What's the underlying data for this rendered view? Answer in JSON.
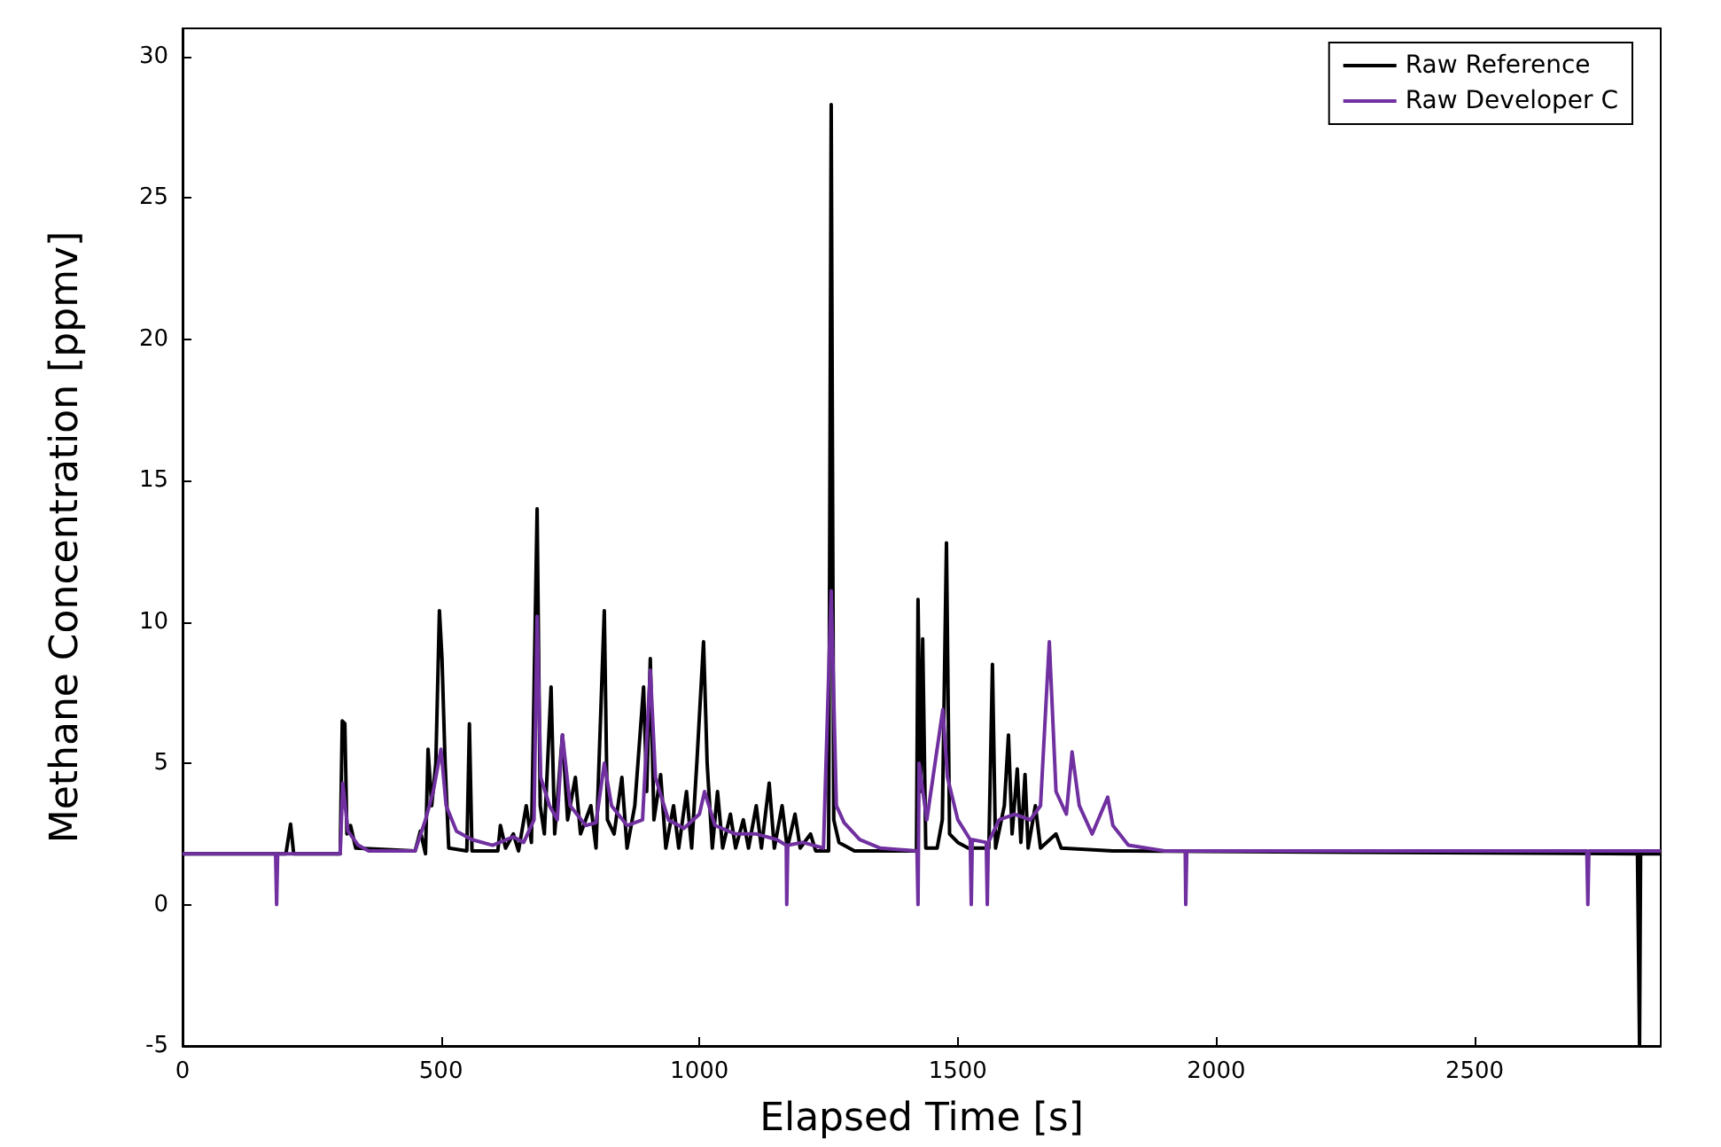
{
  "chart_data": {
    "type": "line",
    "xlabel": "Elapsed Time [s]",
    "ylabel": "Methane Concentration [ppmv]",
    "xlim": [
      0,
      2860
    ],
    "xticks": [
      0,
      500,
      1000,
      1500,
      2000,
      2500
    ],
    "ylim": [
      -5,
      31
    ],
    "yticks": [
      -5,
      0,
      5,
      10,
      15,
      20,
      25,
      30
    ],
    "legend": "top right",
    "marker": "none",
    "series": [
      {
        "name": "Raw Reference",
        "color": "#000000",
        "x": [
          0,
          200,
          209,
          215,
          305,
          309,
          314,
          318,
          325,
          335,
          450,
          460,
          470,
          475,
          482,
          490,
          497,
          502,
          508,
          515,
          550,
          555,
          560,
          610,
          615,
          625,
          640,
          650,
          665,
          675,
          686,
          692,
          700,
          713,
          720,
          735,
          745,
          760,
          770,
          790,
          800,
          816,
          822,
          835,
          850,
          860,
          875,
          892,
          898,
          905,
          912,
          925,
          935,
          950,
          960,
          975,
          985,
          995,
          1008,
          1015,
          1025,
          1035,
          1045,
          1060,
          1070,
          1085,
          1095,
          1110,
          1120,
          1135,
          1145,
          1160,
          1170,
          1185,
          1195,
          1215,
          1225,
          1250,
          1255,
          1260,
          1270,
          1300,
          1420,
          1423,
          1428,
          1432,
          1438,
          1460,
          1470,
          1478,
          1484,
          1500,
          1520,
          1560,
          1567,
          1573,
          1590,
          1598,
          1605,
          1615,
          1622,
          1630,
          1636,
          1650,
          1660,
          1690,
          1700,
          1800,
          2815,
          2819,
          2821,
          2860
        ],
        "values": [
          1.8,
          1.8,
          2.85,
          1.8,
          1.8,
          6.5,
          6.4,
          2.5,
          2.8,
          2.0,
          1.9,
          2.6,
          1.8,
          5.5,
          3.5,
          5.0,
          10.4,
          8.7,
          5,
          2.0,
          1.9,
          6.4,
          1.9,
          1.9,
          2.8,
          2.0,
          2.5,
          1.9,
          3.5,
          2.2,
          14.0,
          3.5,
          2.5,
          7.7,
          2.5,
          6.0,
          3.0,
          4.5,
          2.5,
          3.5,
          2.0,
          10.4,
          3.0,
          2.5,
          4.5,
          2.0,
          3.5,
          7.7,
          4,
          8.7,
          3,
          4.6,
          2.0,
          3.5,
          2.0,
          4,
          2.0,
          5.0,
          9.3,
          5,
          2.0,
          4.0,
          2.0,
          3.2,
          2.0,
          3.0,
          2.0,
          3.5,
          2.0,
          4.3,
          2.0,
          3.5,
          2.0,
          3.2,
          2.0,
          2.5,
          1.9,
          1.9,
          28.3,
          3.0,
          2.2,
          1.9,
          1.9,
          10.8,
          4,
          9.4,
          2.0,
          2.0,
          3,
          12.8,
          2.5,
          2.2,
          2.0,
          2.0,
          8.5,
          2.0,
          3.5,
          6.0,
          2.5,
          4.8,
          2.2,
          4.6,
          2.0,
          3.5,
          2.0,
          2.5,
          2.0,
          1.9,
          1.8,
          -5,
          1.8,
          1.8
        ]
      },
      {
        "name": "Raw Developer C",
        "color": "#7030a0",
        "x": [
          0,
          180,
          182,
          184,
          305,
          310,
          320,
          340,
          360,
          450,
          470,
          485,
          500,
          510,
          530,
          560,
          600,
          640,
          660,
          680,
          686,
          693,
          710,
          725,
          735,
          750,
          780,
          800,
          816,
          830,
          860,
          890,
          905,
          915,
          940,
          970,
          1000,
          1010,
          1030,
          1070,
          1110,
          1150,
          1168,
          1169,
          1171,
          1200,
          1240,
          1255,
          1265,
          1280,
          1310,
          1350,
          1421,
          1423,
          1425,
          1440,
          1471,
          1480,
          1500,
          1524,
          1526,
          1528,
          1555,
          1557,
          1559,
          1580,
          1610,
          1640,
          1660,
          1677,
          1690,
          1710,
          1721,
          1735,
          1760,
          1790,
          1800,
          1830,
          1900,
          1940,
          1941,
          1943,
          2717,
          2719,
          2721,
          2860
        ],
        "values": [
          1.8,
          1.8,
          0,
          1.8,
          1.8,
          4.3,
          2.6,
          2.1,
          1.9,
          1.9,
          3.0,
          4.0,
          5.5,
          3.5,
          2.6,
          2.3,
          2.1,
          2.4,
          2.2,
          3.0,
          10.2,
          4.5,
          3.5,
          3.0,
          6.0,
          3.5,
          2.8,
          2.9,
          5.0,
          3.5,
          2.8,
          3.0,
          8.3,
          4.5,
          3.0,
          2.7,
          3.2,
          4.0,
          2.8,
          2.5,
          2.5,
          2.3,
          2.1,
          0,
          2.1,
          2.2,
          2.0,
          11.1,
          3.5,
          2.9,
          2.3,
          2.0,
          1.9,
          0,
          5,
          3.0,
          6.9,
          4.5,
          3.0,
          2.3,
          0,
          2.3,
          2.2,
          0,
          2.2,
          3.0,
          3.2,
          3.0,
          3.5,
          9.3,
          4.0,
          3.2,
          5.4,
          3.5,
          2.5,
          3.8,
          2.8,
          2.1,
          1.9,
          1.9,
          0,
          1.9,
          1.9,
          0,
          1.9,
          1.9
        ]
      }
    ]
  }
}
